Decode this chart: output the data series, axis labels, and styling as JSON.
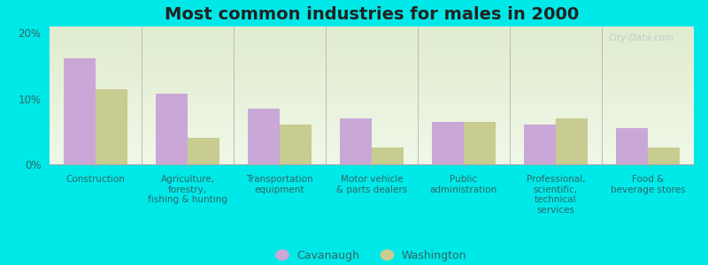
{
  "title": "Most common industries for males in 2000",
  "categories": [
    "Construction",
    "Agriculture,\nforestry,\nfishing & hunting",
    "Transportation\nequipment",
    "Motor vehicle\n& parts dealers",
    "Public\nadministration",
    "Professional,\nscientific,\ntechnical\nservices",
    "Food &\nbeverage stores"
  ],
  "cavanaugh_values": [
    16.2,
    10.8,
    8.5,
    7.0,
    6.5,
    6.0,
    5.5
  ],
  "washington_values": [
    11.5,
    4.0,
    6.0,
    2.5,
    6.5,
    7.0,
    2.5
  ],
  "cavanaugh_color": "#c9a8d8",
  "washington_color": "#c8cc90",
  "background_color": "#00e8e8",
  "plot_bg_color_top": "#e0ecce",
  "plot_bg_color_bottom": "#f0f8e8",
  "ylim": [
    0,
    21
  ],
  "yticks": [
    0,
    10,
    20
  ],
  "ytick_labels": [
    "0%",
    "10%",
    "20%"
  ],
  "legend_cavanaugh": "Cavanaugh",
  "legend_washington": "Washington",
  "title_fontsize": 14,
  "label_fontsize": 7.5,
  "legend_fontsize": 9,
  "tick_color": "#336666",
  "label_color": "#336666",
  "watermark": "City-Data.com"
}
